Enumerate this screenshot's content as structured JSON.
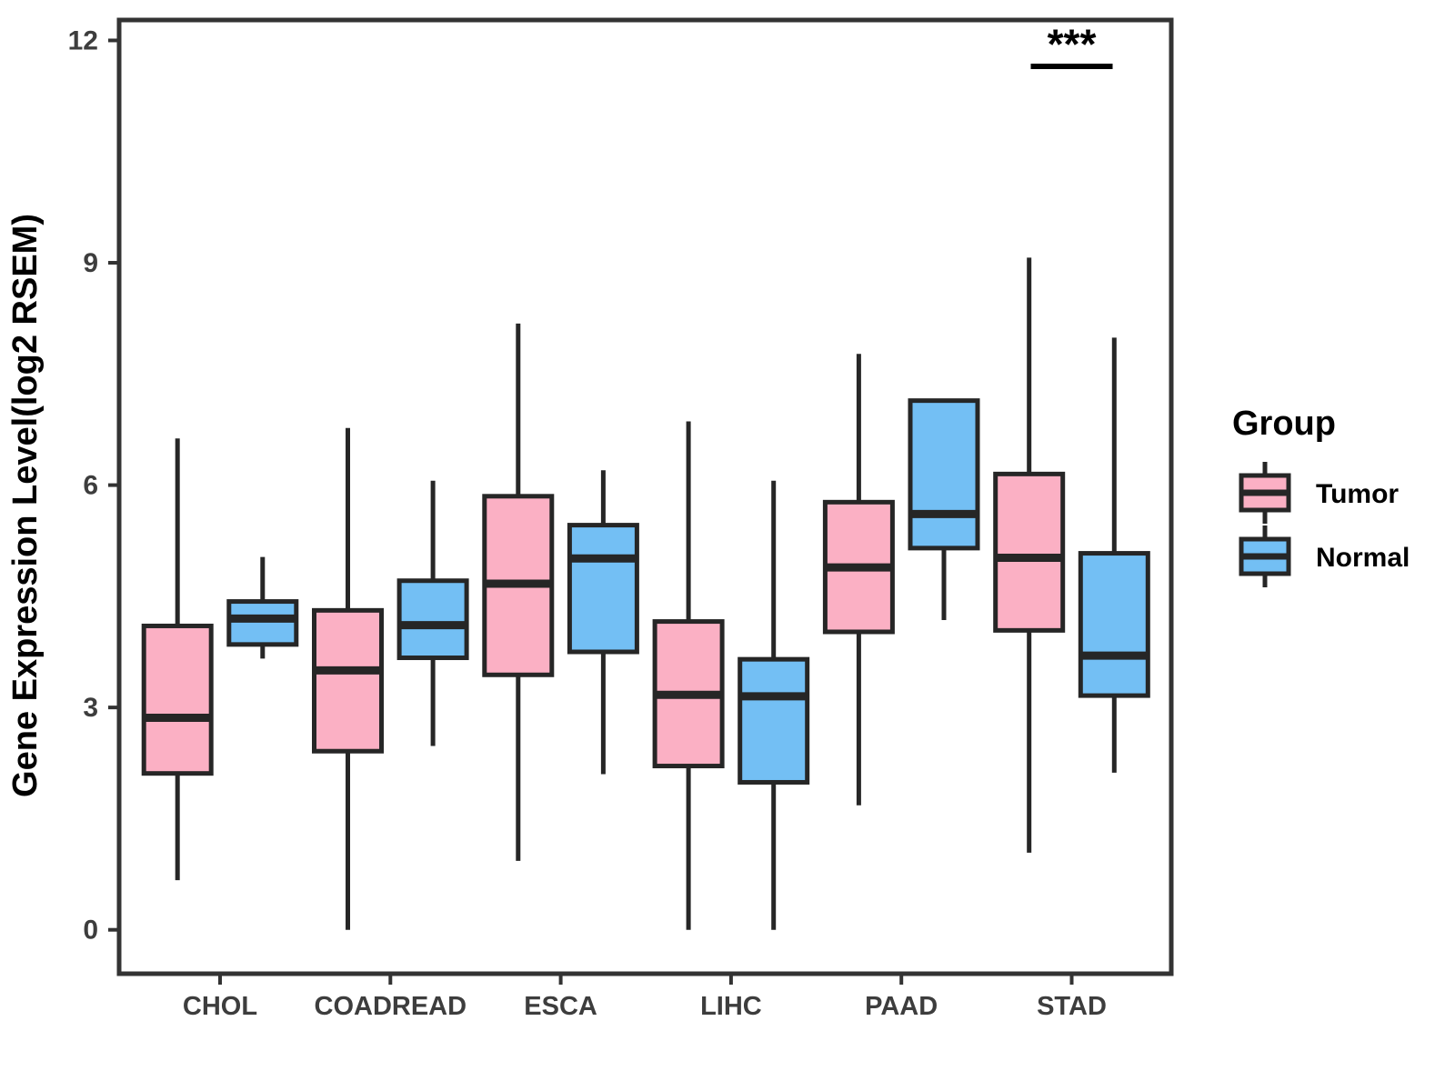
{
  "figure": {
    "background": "#ffffff",
    "panel_border_color": "#333333",
    "axis_text_color": "#3D3D3D",
    "title_text_color": "#000000"
  },
  "chart_data": {
    "type": "boxplot",
    "title": "",
    "xlabel": "",
    "ylabel": "Gene Expression Level(log2 RSEM)",
    "categories": [
      "CHOL",
      "COADREAD",
      "ESCA",
      "LIHC",
      "PAAD",
      "STAD"
    ],
    "yticks": [
      0,
      3,
      6,
      9,
      12
    ],
    "ylim": [
      -0.6,
      12.3
    ],
    "grid": "off",
    "legend": {
      "title": "Group",
      "position": "right",
      "entries": [
        {
          "label": "Tumor",
          "color": "#FBB0C4"
        },
        {
          "label": "Normal",
          "color": "#73BFF4"
        }
      ]
    },
    "series": [
      {
        "name": "Tumor",
        "color": "#FBB0C4",
        "boxes": [
          {
            "category": "CHOL",
            "whisker_low": 0.67,
            "q1": 2.11,
            "median": 2.86,
            "q3": 4.1,
            "whisker_high": 6.63
          },
          {
            "category": "COADREAD",
            "whisker_low": 0.0,
            "q1": 2.41,
            "median": 3.5,
            "q3": 4.31,
            "whisker_high": 6.77
          },
          {
            "category": "ESCA",
            "whisker_low": 0.93,
            "q1": 3.44,
            "median": 4.67,
            "q3": 5.85,
            "whisker_high": 8.18
          },
          {
            "category": "LIHC",
            "whisker_low": 0.0,
            "q1": 2.21,
            "median": 3.17,
            "q3": 4.16,
            "whisker_high": 6.86
          },
          {
            "category": "PAAD",
            "whisker_low": 1.68,
            "q1": 4.02,
            "median": 4.89,
            "q3": 5.77,
            "whisker_high": 7.77
          },
          {
            "category": "STAD",
            "whisker_low": 1.04,
            "q1": 4.04,
            "median": 5.02,
            "q3": 6.15,
            "whisker_high": 9.07
          }
        ]
      },
      {
        "name": "Normal",
        "color": "#73BFF4",
        "boxes": [
          {
            "category": "CHOL",
            "whisker_low": 3.66,
            "q1": 3.85,
            "median": 4.2,
            "q3": 4.43,
            "whisker_high": 5.03
          },
          {
            "category": "COADREAD",
            "whisker_low": 2.48,
            "q1": 3.67,
            "median": 4.11,
            "q3": 4.71,
            "whisker_high": 6.06
          },
          {
            "category": "ESCA",
            "whisker_low": 2.1,
            "q1": 3.75,
            "median": 5.01,
            "q3": 5.46,
            "whisker_high": 6.2
          },
          {
            "category": "LIHC",
            "whisker_low": 0.0,
            "q1": 1.99,
            "median": 3.15,
            "q3": 3.65,
            "whisker_high": 6.06
          },
          {
            "category": "PAAD",
            "whisker_low": 4.18,
            "q1": 5.15,
            "median": 5.61,
            "q3": 7.14,
            "whisker_high": 7.14
          },
          {
            "category": "STAD",
            "whisker_low": 2.12,
            "q1": 3.16,
            "median": 3.7,
            "q3": 5.08,
            "whisker_high": 7.99
          }
        ]
      }
    ],
    "annotations": [
      {
        "text": "***",
        "category": "STAD",
        "line_y": 11.65,
        "text_y": 11.95,
        "underline": true
      }
    ],
    "box_style": {
      "stroke_color": "#262626",
      "median_color": "#262626",
      "whisker_color": "#262626"
    }
  }
}
